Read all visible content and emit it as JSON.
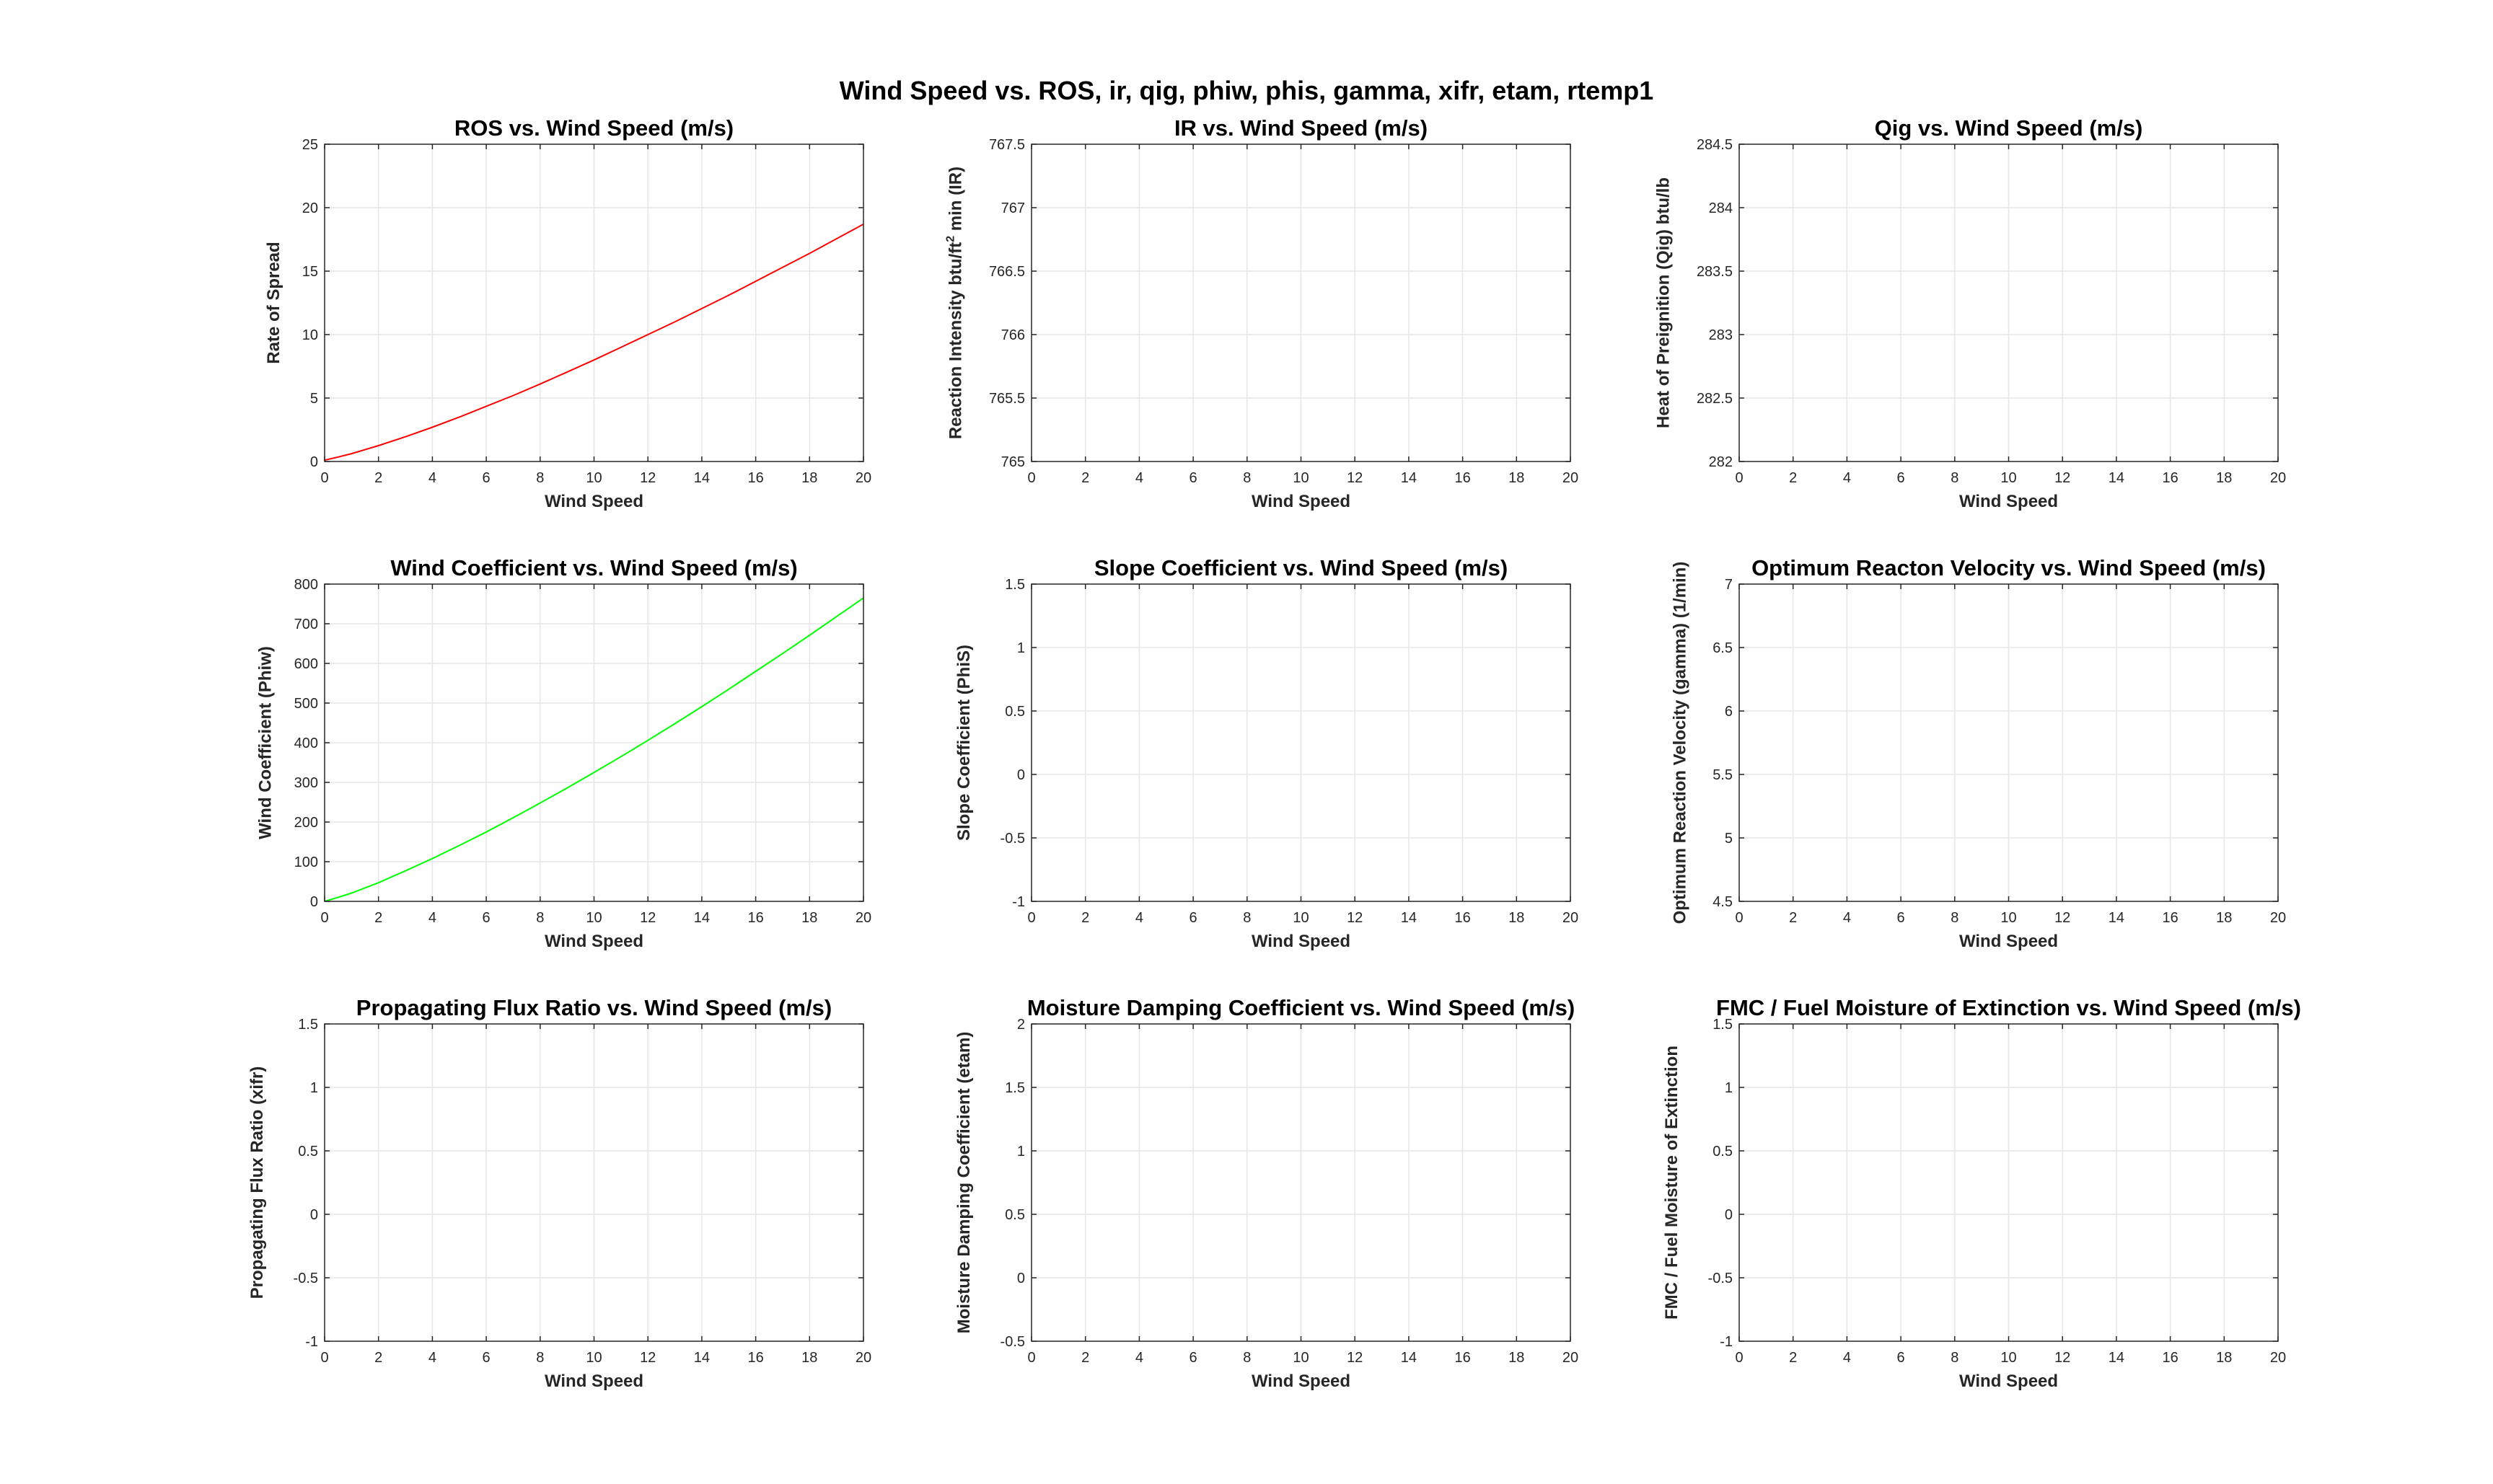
{
  "figure": {
    "suptitle": "Wind Speed vs. ROS, ir, qig, phiw, phis, gamma, xifr, etam, rtemp1"
  },
  "chart_data": [
    {
      "type": "line",
      "title": "ROS vs. Wind Speed (m/s)",
      "xlabel": "Wind Speed",
      "ylabel": "Rate of Spread",
      "xlim": [
        0,
        20
      ],
      "ylim": [
        0,
        25
      ],
      "xticks": [
        "0",
        "2",
        "4",
        "6",
        "8",
        "10",
        "12",
        "14",
        "16",
        "18",
        "20"
      ],
      "yticks": [
        "0",
        "5",
        "10",
        "15",
        "20",
        "25"
      ],
      "grid": true,
      "series": [
        {
          "color": "#ff0000",
          "x": [
            0,
            0.5,
            1,
            2,
            3,
            4,
            5,
            6,
            7,
            8,
            9,
            10,
            11,
            12,
            13,
            14,
            15,
            16,
            17,
            18,
            19,
            20
          ],
          "y": [
            0.1,
            0.35,
            0.62,
            1.25,
            1.95,
            2.7,
            3.5,
            4.35,
            5.2,
            6.1,
            7.05,
            8.0,
            9.0,
            10.0,
            11.0,
            12.05,
            13.1,
            14.2,
            15.3,
            16.4,
            17.55,
            18.7
          ]
        }
      ]
    },
    {
      "type": "line",
      "title": "IR vs. Wind Speed (m/s)",
      "xlabel": "Wind Speed",
      "ylabel": "Reaction Intensity btu/ft",
      "ylabel_sup": "2",
      "ylabel_tail": " min (IR)",
      "xlim": [
        0,
        20
      ],
      "ylim": [
        765,
        767.5
      ],
      "xticks": [
        "0",
        "2",
        "4",
        "6",
        "8",
        "10",
        "12",
        "14",
        "16",
        "18",
        "20"
      ],
      "yticks": [
        "765",
        "765.5",
        "766",
        "766.5",
        "767",
        "767.5"
      ],
      "grid": true,
      "series": []
    },
    {
      "type": "line",
      "title": "Qig vs. Wind Speed (m/s)",
      "xlabel": "Wind Speed",
      "ylabel": "Heat of Preignition (Qig) btu/lb",
      "xlim": [
        0,
        20
      ],
      "ylim": [
        282,
        284.5
      ],
      "xticks": [
        "0",
        "2",
        "4",
        "6",
        "8",
        "10",
        "12",
        "14",
        "16",
        "18",
        "20"
      ],
      "yticks": [
        "282",
        "282.5",
        "283",
        "283.5",
        "284",
        "284.5"
      ],
      "grid": true,
      "series": []
    },
    {
      "type": "line",
      "title": "Wind Coefficient vs. Wind Speed (m/s)",
      "xlabel": "Wind Speed",
      "ylabel": "Wind Coefficient (Phiw)",
      "xlim": [
        0,
        20
      ],
      "ylim": [
        0,
        800
      ],
      "xticks": [
        "0",
        "2",
        "4",
        "6",
        "8",
        "10",
        "12",
        "14",
        "16",
        "18",
        "20"
      ],
      "yticks": [
        "0",
        "100",
        "200",
        "300",
        "400",
        "500",
        "600",
        "700",
        "800"
      ],
      "grid": true,
      "series": [
        {
          "color": "#00ff00",
          "x": [
            0,
            0.5,
            1,
            2,
            3,
            4,
            5,
            6,
            7,
            8,
            9,
            10,
            11,
            12,
            13,
            14,
            15,
            16,
            17,
            18,
            19,
            20
          ],
          "y": [
            0,
            10,
            21,
            47,
            77,
            108,
            141,
            175,
            211,
            248,
            286,
            325,
            365,
            406,
            448,
            491,
            535,
            580,
            625,
            671,
            718,
            765
          ]
        }
      ]
    },
    {
      "type": "line",
      "title": "Slope Coefficient vs. Wind Speed (m/s)",
      "xlabel": "Wind Speed",
      "ylabel": "Slope Coefficient (PhiS)",
      "xlim": [
        0,
        20
      ],
      "ylim": [
        -1,
        1.5
      ],
      "xticks": [
        "0",
        "2",
        "4",
        "6",
        "8",
        "10",
        "12",
        "14",
        "16",
        "18",
        "20"
      ],
      "yticks": [
        "-1",
        "-0.5",
        "0",
        "0.5",
        "1",
        "1.5"
      ],
      "grid": true,
      "series": []
    },
    {
      "type": "line",
      "title": "Optimum Reacton Velocity vs. Wind Speed (m/s)",
      "xlabel": "Wind Speed",
      "ylabel": "Optimum Reaction Velocity (gamma) (1/min)",
      "xlim": [
        0,
        20
      ],
      "ylim": [
        4.5,
        7
      ],
      "xticks": [
        "0",
        "2",
        "4",
        "6",
        "8",
        "10",
        "12",
        "14",
        "16",
        "18",
        "20"
      ],
      "yticks": [
        "4.5",
        "5",
        "5.5",
        "6",
        "6.5",
        "7"
      ],
      "grid": true,
      "series": []
    },
    {
      "type": "line",
      "title": "Propagating Flux Ratio vs. Wind Speed (m/s)",
      "xlabel": "Wind Speed",
      "ylabel": "Propagating Flux Ratio (xifr)",
      "xlim": [
        0,
        20
      ],
      "ylim": [
        -1,
        1.5
      ],
      "xticks": [
        "0",
        "2",
        "4",
        "6",
        "8",
        "10",
        "12",
        "14",
        "16",
        "18",
        "20"
      ],
      "yticks": [
        "-1",
        "-0.5",
        "0",
        "0.5",
        "1",
        "1.5"
      ],
      "grid": true,
      "series": []
    },
    {
      "type": "line",
      "title": "Moisture Damping Coefficient vs. Wind Speed (m/s)",
      "xlabel": "Wind Speed",
      "ylabel": "Moisture Damping Coefficient (etam)",
      "xlim": [
        0,
        20
      ],
      "ylim": [
        -0.5,
        2
      ],
      "xticks": [
        "0",
        "2",
        "4",
        "6",
        "8",
        "10",
        "12",
        "14",
        "16",
        "18",
        "20"
      ],
      "yticks": [
        "-0.5",
        "0",
        "0.5",
        "1",
        "1.5",
        "2"
      ],
      "grid": true,
      "series": []
    },
    {
      "type": "line",
      "title": "FMC / Fuel Moisture of Extinction vs. Wind Speed (m/s)",
      "xlabel": "Wind Speed",
      "ylabel": "FMC / Fuel Moisture of Extinction",
      "xlim": [
        0,
        20
      ],
      "ylim": [
        -1,
        1.5
      ],
      "xticks": [
        "0",
        "2",
        "4",
        "6",
        "8",
        "10",
        "12",
        "14",
        "16",
        "18",
        "20"
      ],
      "yticks": [
        "-1",
        "-0.5",
        "0",
        "0.5",
        "1",
        "1.5"
      ],
      "grid": true,
      "series": []
    }
  ]
}
